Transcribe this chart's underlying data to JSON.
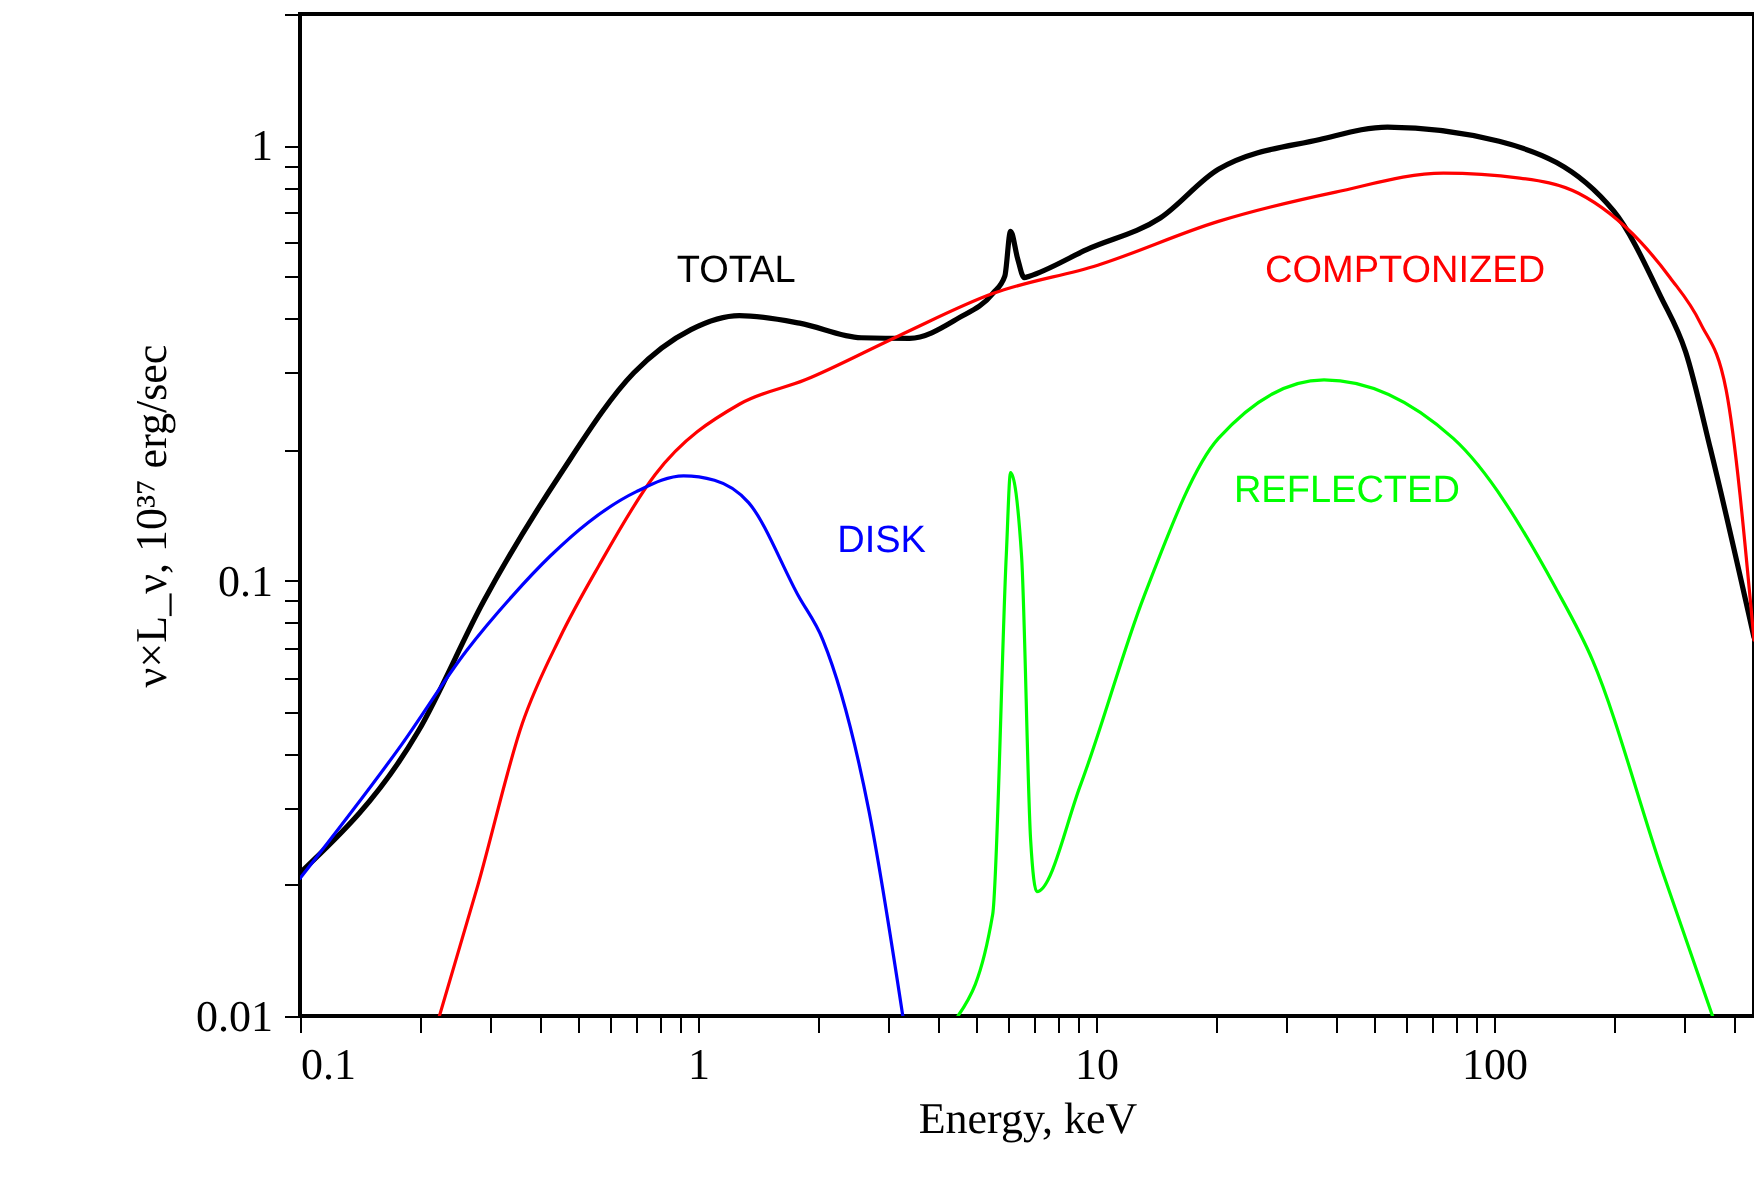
{
  "chart_data": {
    "type": "line",
    "xlabel": "Energy, keV",
    "ylabel": "ν×L_ν,  10³⁷ erg/sec",
    "log": "xy",
    "grid": false,
    "line_style": "solid",
    "marker": "none",
    "xlim": [
      0.1,
      450
    ],
    "ylim": [
      0.01,
      2
    ],
    "xticks": [
      0.1,
      {
        "value": 0.2,
        "label": null
      },
      {
        "value": 0.3,
        "label": null
      },
      {
        "value": 0.4,
        "label": null
      },
      {
        "value": 0.5,
        "label": null
      },
      {
        "value": 0.6,
        "label": null
      },
      {
        "value": 0.7,
        "label": null
      },
      {
        "value": 0.8,
        "label": null
      },
      {
        "value": 0.9,
        "label": null
      },
      1,
      {
        "value": 2,
        "label": null
      },
      {
        "value": 3,
        "label": null
      },
      {
        "value": 4,
        "label": null
      },
      {
        "value": 5,
        "label": null
      },
      {
        "value": 6,
        "label": null
      },
      {
        "value": 7,
        "label": null
      },
      {
        "value": 8,
        "label": null
      },
      {
        "value": 9,
        "label": null
      },
      10,
      {
        "value": 20,
        "label": null
      },
      {
        "value": 30,
        "label": null
      },
      {
        "value": 40,
        "label": null
      },
      {
        "value": 50,
        "label": null
      },
      {
        "value": 60,
        "label": null
      },
      {
        "value": 70,
        "label": null
      },
      {
        "value": 80,
        "label": null
      },
      {
        "value": 90,
        "label": null
      },
      100,
      {
        "value": 200,
        "label": null
      },
      {
        "value": 300,
        "label": null
      },
      {
        "value": 400,
        "label": null
      }
    ],
    "yticks": [
      0.01,
      {
        "value": 0.02,
        "label": null
      },
      {
        "value": 0.03,
        "label": null
      },
      {
        "value": 0.04,
        "label": null
      },
      {
        "value": 0.05,
        "label": null
      },
      {
        "value": 0.06,
        "label": null
      },
      {
        "value": 0.07,
        "label": null
      },
      {
        "value": 0.08,
        "label": null
      },
      {
        "value": 0.09,
        "label": null
      },
      0.1,
      {
        "value": 0.2,
        "label": null
      },
      {
        "value": 0.3,
        "label": null
      },
      {
        "value": 0.4,
        "label": null
      },
      {
        "value": 0.5,
        "label": null
      },
      {
        "value": 0.6,
        "label": null
      },
      {
        "value": 0.7,
        "label": null
      },
      {
        "value": 0.8,
        "label": null
      },
      {
        "value": 0.9,
        "label": null
      },
      1,
      {
        "value": 2,
        "label": null
      }
    ],
    "series": [
      {
        "name": "TOTAL",
        "color": "#000000",
        "x": [
          0.1,
          0.198,
          0.29,
          0.45,
          0.69,
          0.96,
          1.27,
          1.8,
          2.57,
          3.4,
          4.5,
          5.5,
          5.9,
          6.1,
          6.35,
          6.6,
          6.8,
          9.5,
          14.5,
          20.3,
          36.5,
          54,
          103,
          200,
          262,
          303,
          350,
          450
        ],
        "values": [
          0.0213,
          0.045,
          0.09,
          0.175,
          0.3,
          0.377,
          0.406,
          0.39,
          0.361,
          0.36,
          0.4,
          0.456,
          0.5,
          0.634,
          0.55,
          0.496,
          0.5,
          0.576,
          0.68,
          0.88,
          1.03,
          1.1,
          1.02,
          0.705,
          0.45,
          0.335,
          0.2,
          0.074
        ]
      },
      {
        "name": "COMPTONIZED",
        "color": "#ff0000",
        "x": [
          0.224,
          0.28,
          0.362,
          0.45,
          0.563,
          0.78,
          1.27,
          1.86,
          3.2,
          5.5,
          10.1,
          20.3,
          40,
          74.6,
          116,
          163,
          233,
          277,
          330,
          383,
          450
        ],
        "values": [
          0.01,
          0.02,
          0.047,
          0.074,
          0.108,
          0.175,
          0.254,
          0.289,
          0.365,
          0.456,
          0.53,
          0.668,
          0.78,
          0.862,
          0.84,
          0.775,
          0.6,
          0.496,
          0.39,
          0.274,
          0.073
        ]
      },
      {
        "name": "DISK",
        "color": "#0000ff",
        "x": [
          0.1,
          0.18,
          0.262,
          0.341,
          0.426,
          0.53,
          0.7,
          0.92,
          1.1,
          1.34,
          1.79,
          2.06,
          2.69,
          3.27
        ],
        "values": [
          0.0207,
          0.042,
          0.069,
          0.092,
          0.114,
          0.136,
          0.16,
          0.174,
          0.17,
          0.151,
          0.092,
          0.073,
          0.0295,
          0.01
        ]
      },
      {
        "name": "REFLECTED",
        "color": "#00ff00",
        "x": [
          4.5,
          5.5,
          5.95,
          6.1,
          6.5,
          6.85,
          7.1,
          9.15,
          13.2,
          20.3,
          37.4,
          79,
          143,
          177,
          263,
          354
        ],
        "values": [
          0.01,
          0.0171,
          0.114,
          0.177,
          0.114,
          0.0254,
          0.0193,
          0.034,
          0.092,
          0.212,
          0.289,
          0.212,
          0.096,
          0.0655,
          0.0219,
          0.01
        ]
      }
    ]
  }
}
